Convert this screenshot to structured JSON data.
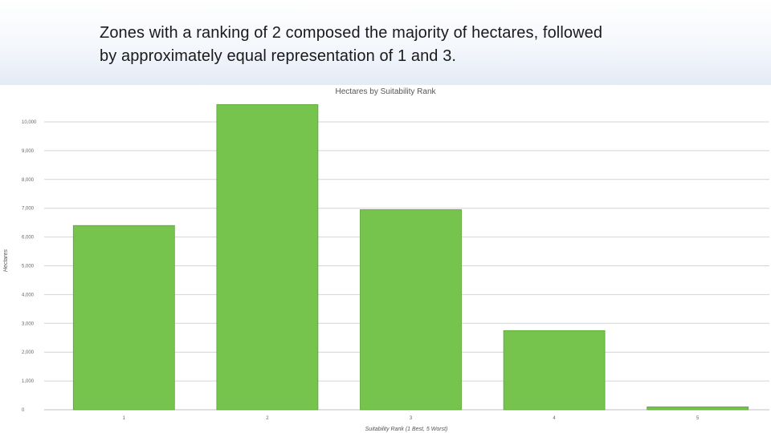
{
  "slide": {
    "caption_line1": "Zones with a ranking of 2 composed the majority of hectares, followed",
    "caption_line2": "by approximately equal representation of 1 and 3."
  },
  "chart_data": {
    "type": "bar",
    "title": "Hectares by Suitability Rank",
    "xlabel": "Suitability Rank (1 Best, 5 Worst)",
    "ylabel": "Hectares",
    "categories": [
      "1",
      "2",
      "3",
      "4",
      "5"
    ],
    "values": [
      6400,
      10600,
      6950,
      2750,
      100
    ],
    "ylim": [
      0,
      11000
    ],
    "yticks": [
      0,
      1000,
      2000,
      3000,
      4000,
      5000,
      6000,
      7000,
      8000,
      9000,
      10000
    ],
    "ytick_labels": [
      "0",
      "1,000",
      "2,000",
      "3,000",
      "4,000",
      "5,000",
      "6,000",
      "7,000",
      "8,000",
      "9,000",
      "10,000"
    ],
    "grid": true,
    "bar_color": "#76c44e",
    "bar_edge_color": "#5aa535"
  }
}
